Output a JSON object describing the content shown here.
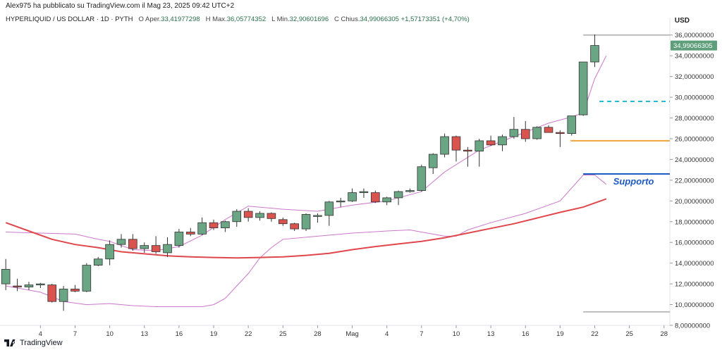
{
  "header": {
    "published": "Alex975 ha pubblicato su TradingView.com il Mag 23, 2025 09:42 UTC+2",
    "symbol": "HYPERLIQUID / US DOLLAR · 1D · PYTH",
    "o_label": "O",
    "open_label": "Aper.",
    "open": "33,41977298",
    "h_label": "H",
    "high_label": "Max.",
    "high": "36,05774352",
    "l_label": "L",
    "low_label": "Min.",
    "low": "32,90601696",
    "c_label": "C",
    "close_label": "Chius.",
    "close": "34,99066305",
    "change": "+1,57173351 (+4,70%)"
  },
  "axis_title": "USD",
  "price_tag": "34,99066305",
  "annotation_support": "Supporto",
  "footer_brand": "TradingView",
  "colors": {
    "up": "#6aa584",
    "down": "#d9534f",
    "bb": "#cc77cc",
    "ma": "#e0474c",
    "support": "#1e5bc6",
    "orange": "#f2a33a",
    "cyan": "#26b8d9",
    "gray": "#bbbbbb"
  },
  "chart_data": {
    "type": "candlestick",
    "ylim": [
      8,
      37
    ],
    "y_ticks": [
      8,
      10,
      12,
      14,
      16,
      18,
      20,
      22,
      24,
      26,
      28,
      30,
      32,
      34,
      36
    ],
    "y_tick_labels": [
      "8,00000000",
      "10,00000000",
      "12,00000000",
      "14,00000000",
      "16,00000000",
      "18,00000000",
      "20,00000000",
      "22,00000000",
      "24,00000000",
      "26,00000000",
      "28,00000000",
      "30,00000000",
      "32,00000000",
      "34,00000000",
      "36,00000000"
    ],
    "x_ticks": [
      {
        "day": 3,
        "label": "4"
      },
      {
        "day": 6,
        "label": "7"
      },
      {
        "day": 9,
        "label": "10"
      },
      {
        "day": 12,
        "label": "13"
      },
      {
        "day": 15,
        "label": "16"
      },
      {
        "day": 18,
        "label": "19"
      },
      {
        "day": 21,
        "label": "22"
      },
      {
        "day": 24,
        "label": "25"
      },
      {
        "day": 27,
        "label": "28"
      },
      {
        "day": 30,
        "label": "Mag"
      },
      {
        "day": 33,
        "label": "4"
      },
      {
        "day": 36,
        "label": "7"
      },
      {
        "day": 39,
        "label": "10"
      },
      {
        "day": 42,
        "label": "13"
      },
      {
        "day": 45,
        "label": "16"
      },
      {
        "day": 48,
        "label": "19"
      },
      {
        "day": 51,
        "label": "22"
      },
      {
        "day": 54,
        "label": "25"
      },
      {
        "day": 57,
        "label": "28"
      }
    ],
    "xlim": [
      -0.5,
      57.5
    ],
    "candles": [
      {
        "o": 12.0,
        "h": 14.4,
        "l": 11.4,
        "c": 13.4
      },
      {
        "o": 11.8,
        "h": 12.5,
        "l": 11.3,
        "c": 11.7
      },
      {
        "o": 11.7,
        "h": 12.2,
        "l": 11.4,
        "c": 11.9
      },
      {
        "o": 11.9,
        "h": 12.1,
        "l": 11.6,
        "c": 12.0
      },
      {
        "o": 11.9,
        "h": 12.0,
        "l": 10.2,
        "c": 10.3
      },
      {
        "o": 10.3,
        "h": 11.8,
        "l": 9.4,
        "c": 11.5
      },
      {
        "o": 11.5,
        "h": 11.9,
        "l": 11.2,
        "c": 11.3
      },
      {
        "o": 11.3,
        "h": 14.0,
        "l": 11.2,
        "c": 13.8
      },
      {
        "o": 13.8,
        "h": 14.6,
        "l": 13.7,
        "c": 14.4
      },
      {
        "o": 14.4,
        "h": 16.2,
        "l": 13.8,
        "c": 15.8
      },
      {
        "o": 15.8,
        "h": 16.8,
        "l": 15.5,
        "c": 16.3
      },
      {
        "o": 16.3,
        "h": 16.8,
        "l": 15.2,
        "c": 15.4
      },
      {
        "o": 15.4,
        "h": 16.0,
        "l": 15.0,
        "c": 15.7
      },
      {
        "o": 15.7,
        "h": 16.6,
        "l": 14.9,
        "c": 15.1
      },
      {
        "o": 15.0,
        "h": 16.5,
        "l": 14.6,
        "c": 15.8
      },
      {
        "o": 15.7,
        "h": 17.3,
        "l": 15.5,
        "c": 17.0
      },
      {
        "o": 17.0,
        "h": 17.4,
        "l": 16.6,
        "c": 16.8
      },
      {
        "o": 16.8,
        "h": 18.4,
        "l": 16.7,
        "c": 17.9
      },
      {
        "o": 17.9,
        "h": 18.2,
        "l": 17.2,
        "c": 17.4
      },
      {
        "o": 17.4,
        "h": 18.1,
        "l": 17.0,
        "c": 18.0
      },
      {
        "o": 18.0,
        "h": 19.2,
        "l": 17.5,
        "c": 19.0
      },
      {
        "o": 19.0,
        "h": 19.3,
        "l": 18.0,
        "c": 18.4
      },
      {
        "o": 18.4,
        "h": 19.0,
        "l": 18.1,
        "c": 18.8
      },
      {
        "o": 18.8,
        "h": 18.9,
        "l": 18.0,
        "c": 18.3
      },
      {
        "o": 18.2,
        "h": 18.4,
        "l": 17.6,
        "c": 17.8
      },
      {
        "o": 17.8,
        "h": 17.9,
        "l": 17.1,
        "c": 17.3
      },
      {
        "o": 17.3,
        "h": 18.8,
        "l": 17.1,
        "c": 18.7
      },
      {
        "o": 18.6,
        "h": 18.8,
        "l": 17.9,
        "c": 18.6
      },
      {
        "o": 18.6,
        "h": 20.0,
        "l": 17.6,
        "c": 19.9
      },
      {
        "o": 19.9,
        "h": 20.3,
        "l": 19.4,
        "c": 20.0
      },
      {
        "o": 20.0,
        "h": 21.2,
        "l": 19.9,
        "c": 20.8
      },
      {
        "o": 20.8,
        "h": 21.2,
        "l": 20.3,
        "c": 20.9
      },
      {
        "o": 20.8,
        "h": 21.0,
        "l": 19.8,
        "c": 19.9
      },
      {
        "o": 19.9,
        "h": 20.4,
        "l": 19.6,
        "c": 20.3
      },
      {
        "o": 20.3,
        "h": 21.0,
        "l": 19.6,
        "c": 20.9
      },
      {
        "o": 20.9,
        "h": 21.2,
        "l": 20.8,
        "c": 21.0
      },
      {
        "o": 21.0,
        "h": 23.5,
        "l": 20.9,
        "c": 23.3
      },
      {
        "o": 23.2,
        "h": 24.6,
        "l": 22.6,
        "c": 24.5
      },
      {
        "o": 24.5,
        "h": 26.5,
        "l": 24.2,
        "c": 26.2
      },
      {
        "o": 26.2,
        "h": 26.3,
        "l": 23.8,
        "c": 24.9
      },
      {
        "o": 24.9,
        "h": 25.2,
        "l": 23.3,
        "c": 24.8
      },
      {
        "o": 24.8,
        "h": 26.0,
        "l": 23.3,
        "c": 25.8
      },
      {
        "o": 25.8,
        "h": 26.3,
        "l": 25.3,
        "c": 25.4
      },
      {
        "o": 25.4,
        "h": 26.4,
        "l": 24.8,
        "c": 26.2
      },
      {
        "o": 26.2,
        "h": 28.1,
        "l": 26.0,
        "c": 26.9
      },
      {
        "o": 26.9,
        "h": 27.7,
        "l": 25.7,
        "c": 26.0
      },
      {
        "o": 26.0,
        "h": 27.2,
        "l": 25.9,
        "c": 27.1
      },
      {
        "o": 27.1,
        "h": 27.3,
        "l": 26.6,
        "c": 26.6
      },
      {
        "o": 26.6,
        "h": 26.8,
        "l": 25.2,
        "c": 26.5
      },
      {
        "o": 26.5,
        "h": 28.2,
        "l": 26.3,
        "c": 28.2
      },
      {
        "o": 28.3,
        "h": 33.4,
        "l": 28.2,
        "c": 33.4
      },
      {
        "o": 33.4,
        "h": 36.05774352,
        "l": 32.90601696,
        "c": 34.99066305
      }
    ],
    "bollinger_upper": [
      [
        0,
        17.0
      ],
      [
        3,
        16.9
      ],
      [
        6,
        16.8
      ],
      [
        8,
        16.3
      ],
      [
        9,
        16.1
      ],
      [
        11,
        15.3
      ],
      [
        13,
        15.2
      ],
      [
        15,
        15.6
      ],
      [
        17,
        16.7
      ],
      [
        19,
        18.2
      ],
      [
        21,
        19.5
      ],
      [
        24,
        19.2
      ],
      [
        27,
        19.0
      ],
      [
        30,
        19.6
      ],
      [
        33,
        20.0
      ],
      [
        36,
        20.9
      ],
      [
        38,
        22.8
      ],
      [
        41,
        24.9
      ],
      [
        44,
        26.2
      ],
      [
        47,
        27.5
      ],
      [
        49,
        28.1
      ],
      [
        50,
        28.5
      ],
      [
        51,
        31.8
      ],
      [
        52,
        34.0
      ]
    ],
    "bollinger_lower": [
      [
        0,
        11.8
      ],
      [
        3,
        11.2
      ],
      [
        5,
        10.3
      ],
      [
        7,
        10.0
      ],
      [
        9,
        10.1
      ],
      [
        11,
        9.9
      ],
      [
        13,
        9.8
      ],
      [
        15,
        9.8
      ],
      [
        17,
        9.8
      ],
      [
        18,
        10.0
      ],
      [
        19,
        10.6
      ],
      [
        20,
        11.8
      ],
      [
        21,
        13.0
      ],
      [
        22,
        14.5
      ],
      [
        23,
        15.5
      ],
      [
        24,
        16.3
      ],
      [
        27,
        16.6
      ],
      [
        30,
        16.9
      ],
      [
        33,
        17.1
      ],
      [
        35,
        17.2
      ],
      [
        36,
        17.0
      ],
      [
        38,
        16.6
      ],
      [
        39,
        16.6
      ],
      [
        40,
        17.2
      ],
      [
        42,
        17.9
      ],
      [
        45,
        18.8
      ],
      [
        48,
        20.0
      ],
      [
        50,
        22.5
      ],
      [
        51,
        22.5
      ],
      [
        52,
        21.6
      ]
    ],
    "moving_average": [
      [
        0,
        17.9
      ],
      [
        2,
        17.1
      ],
      [
        4,
        16.3
      ],
      [
        6,
        15.8
      ],
      [
        8,
        15.5
      ],
      [
        10,
        15.1
      ],
      [
        12,
        14.9
      ],
      [
        14,
        14.7
      ],
      [
        16,
        14.6
      ],
      [
        18,
        14.55
      ],
      [
        20,
        14.5
      ],
      [
        22,
        14.55
      ],
      [
        24,
        14.6
      ],
      [
        26,
        14.75
      ],
      [
        28,
        14.95
      ],
      [
        30,
        15.3
      ],
      [
        32,
        15.6
      ],
      [
        34,
        15.85
      ],
      [
        36,
        16.1
      ],
      [
        38,
        16.45
      ],
      [
        40,
        16.9
      ],
      [
        42,
        17.35
      ],
      [
        44,
        17.8
      ],
      [
        46,
        18.35
      ],
      [
        48,
        18.9
      ],
      [
        50,
        19.4
      ],
      [
        52,
        20.2
      ]
    ],
    "lines": [
      {
        "name": "gray-top",
        "y": 36.0,
        "x1": 50,
        "x2": 57.5,
        "color": "#bbbbbb",
        "width": 2,
        "dash": ""
      },
      {
        "name": "gray-bottom",
        "y": 9.3,
        "x1": 50,
        "x2": 57.5,
        "color": "#bbbbbb",
        "width": 2,
        "dash": ""
      },
      {
        "name": "cyan",
        "y": 29.6,
        "x1": 51.4,
        "x2": 57.5,
        "color": "#26b8d9",
        "width": 2,
        "dash": "6,5"
      },
      {
        "name": "orange",
        "y": 25.8,
        "x1": 48.9,
        "x2": 57.5,
        "color": "#f2a33a",
        "width": 2,
        "dash": ""
      },
      {
        "name": "support",
        "y": 22.6,
        "x1": 50,
        "x2": 57.5,
        "color": "#1e5bc6",
        "width": 2,
        "dash": ""
      }
    ]
  }
}
